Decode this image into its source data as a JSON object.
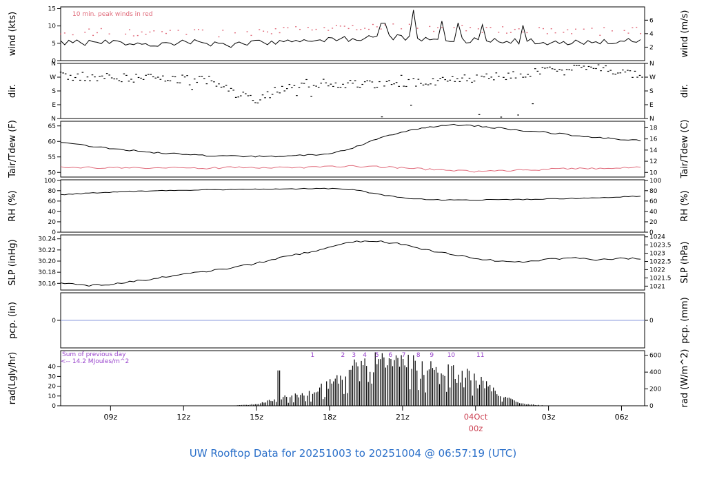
{
  "footer": {
    "title": "UW Rooftop Data for 20251003  to  20251004 @ 06:57:19  (UTC)",
    "color": "#2a6fc9"
  },
  "annotations": {
    "peak_winds_note": {
      "text": "10 min. peak winds in red",
      "color": "#e06a7a"
    },
    "rad_sum_line1": {
      "text": "Sum of previous day",
      "color": "#9944cc"
    },
    "rad_sum_line2": {
      "text": "<-- 14.2 MJoules/m^2",
      "color": "#9944cc"
    },
    "date_label": {
      "line1": "04Oct",
      "line2": "00z",
      "color": "#cc4455"
    }
  },
  "x_axis": {
    "start_hour": 6.95,
    "end_hour": 30.95,
    "ticks": [
      {
        "hour": 9,
        "label": "09z"
      },
      {
        "hour": 12,
        "label": "12z"
      },
      {
        "hour": 15,
        "label": "15z"
      },
      {
        "hour": 18,
        "label": "18z"
      },
      {
        "hour": 21,
        "label": "21z"
      },
      {
        "hour": 24,
        "label": "",
        "red": true
      },
      {
        "hour": 27,
        "label": "03z"
      },
      {
        "hour": 30,
        "label": "06z"
      }
    ]
  },
  "chart_data": {
    "type": "line",
    "title": "UW Rooftop meteogram 20251003-20251004",
    "panels": [
      {
        "name": "wind",
        "ylabel_left": "wind (kts)",
        "ylabel_right": "wind (m/s)",
        "ylim": [
          0,
          15.5
        ],
        "yticks_left": [
          {
            "v": 0,
            "label": "0"
          },
          {
            "v": 5,
            "label": "5"
          },
          {
            "v": 10,
            "label": "10"
          },
          {
            "v": 15,
            "label": "15"
          }
        ],
        "yticks_right": [
          {
            "v": 3.89,
            "label": "2"
          },
          {
            "v": 7.78,
            "label": "4"
          },
          {
            "v": 11.66,
            "label": "6"
          }
        ],
        "series": [
          {
            "name": "peak-wind-10min",
            "type": "dots",
            "color": "#e06a7a",
            "noise": 1.1,
            "gap_rate": 0.35,
            "hourly": [
              8.5,
              8.2,
              8.6,
              8.0,
              8.3,
              8.8,
              8.3,
              7.8,
              8.2,
              8.8,
              9.2,
              9.5,
              9.7,
              10.0,
              10.3,
              9.7,
              9.2,
              9.5,
              8.8,
              9.0,
              8.6,
              8.9,
              8.4,
              9.2,
              8.8
            ]
          },
          {
            "name": "mean-wind",
            "type": "line",
            "color": "#000000",
            "noise": 0.9,
            "spikes": [
              {
                "hour": 20.2,
                "value": 10.8
              },
              {
                "hour": 21.4,
                "value": 14.6
              },
              {
                "hour": 22.6,
                "value": 11.4
              },
              {
                "hour": 23.3,
                "value": 10.9
              },
              {
                "hour": 24.3,
                "value": 10.4
              },
              {
                "hour": 25.9,
                "value": 10.2
              }
            ],
            "hourly": [
              5.2,
              5.0,
              5.3,
              4.8,
              5.0,
              5.4,
              5.0,
              4.6,
              5.0,
              5.5,
              5.8,
              6.0,
              6.2,
              6.5,
              6.8,
              6.2,
              5.8,
              6.0,
              5.4,
              5.6,
              5.2,
              5.5,
              5.0,
              5.8,
              5.4
            ]
          }
        ]
      },
      {
        "name": "dir",
        "ylabel_left": "dir.",
        "ylabel_right": "dir.",
        "ylim": [
          0,
          360
        ],
        "yticks_left": [
          {
            "v": 0,
            "label": "N"
          },
          {
            "v": 90,
            "label": "E"
          },
          {
            "v": 180,
            "label": "S"
          },
          {
            "v": 270,
            "label": "W"
          },
          {
            "v": 360,
            "label": "N"
          }
        ],
        "yticks_right": [
          {
            "v": 0,
            "label": "N"
          },
          {
            "v": 90,
            "label": "E"
          },
          {
            "v": 180,
            "label": "S"
          },
          {
            "v": 270,
            "label": "W"
          },
          {
            "v": 360,
            "label": "N"
          }
        ],
        "series": [
          {
            "name": "wind-direction",
            "type": "scatter",
            "color": "#000000",
            "spread": 28,
            "outlier_rate": 0.07,
            "hourly": [
              280,
              278,
              272,
              268,
              265,
              262,
              255,
              170,
              120,
              200,
              230,
              235,
              225,
              220,
              235,
              245,
              255,
              265,
              275,
              295,
              315,
              335,
              345,
              305,
              285
            ]
          }
        ]
      },
      {
        "name": "temp",
        "ylabel_left": "Tair/Tdew (F)",
        "ylabel_right": "Tair/Tdew (C)",
        "ylim": [
          48.5,
          66.5
        ],
        "yticks_left": [
          {
            "v": 50,
            "label": "50"
          },
          {
            "v": 55,
            "label": "55"
          },
          {
            "v": 60,
            "label": "60"
          },
          {
            "v": 65,
            "label": "65"
          }
        ],
        "yticks_right": [
          {
            "v": 50,
            "label": "10"
          },
          {
            "v": 53.6,
            "label": "12"
          },
          {
            "v": 57.2,
            "label": "14"
          },
          {
            "v": 60.8,
            "label": "16"
          },
          {
            "v": 64.4,
            "label": "18"
          }
        ],
        "series": [
          {
            "name": "air-temperature",
            "type": "line",
            "color": "#000000",
            "noise": 0.25,
            "hourly": [
              59.5,
              58.6,
              57.8,
              57.0,
              56.3,
              55.8,
              55.4,
              55.2,
              55.1,
              55.3,
              55.5,
              56.0,
              58.0,
              61.0,
              63.0,
              64.5,
              65.3,
              65.0,
              64.3,
              63.5,
              62.8,
              62.0,
              61.3,
              60.7,
              60.1
            ]
          },
          {
            "name": "dew-point",
            "type": "line",
            "color": "#e06a7a",
            "noise": 0.3,
            "hourly": [
              51.8,
              51.6,
              51.5,
              51.4,
              51.3,
              51.5,
              51.4,
              51.6,
              51.5,
              51.7,
              51.6,
              51.8,
              52.0,
              51.8,
              51.5,
              51.0,
              50.6,
              50.3,
              50.5,
              50.8,
              51.0,
              51.2,
              51.3,
              51.5,
              51.6
            ]
          }
        ]
      },
      {
        "name": "rh",
        "ylabel_left": "RH (%)",
        "ylabel_right": "RH (%)",
        "ylim": [
          0,
          101
        ],
        "yticks_left": [
          {
            "v": 0,
            "label": "0"
          },
          {
            "v": 20,
            "label": "20"
          },
          {
            "v": 40,
            "label": "40"
          },
          {
            "v": 60,
            "label": "60"
          },
          {
            "v": 80,
            "label": "80"
          },
          {
            "v": 100,
            "label": "100"
          }
        ],
        "yticks_right": [
          {
            "v": 0,
            "label": "0"
          },
          {
            "v": 20,
            "label": "20"
          },
          {
            "v": 40,
            "label": "40"
          },
          {
            "v": 60,
            "label": "60"
          },
          {
            "v": 80,
            "label": "80"
          },
          {
            "v": 100,
            "label": "100"
          }
        ],
        "series": [
          {
            "name": "relative-humidity",
            "type": "line",
            "color": "#000000",
            "noise": 0.8,
            "hourly": [
              72,
              75,
              77,
              79,
              80,
              81,
              82,
              82,
              83,
              83,
              84,
              84,
              82,
              73,
              66,
              63,
              62,
              62,
              63,
              63,
              64,
              65,
              66,
              68,
              70
            ]
          }
        ]
      },
      {
        "name": "slp",
        "ylabel_left": "SLP (inHg)",
        "ylabel_right": "SLP (hPa)",
        "ylim": [
          30.148,
          30.247
        ],
        "yticks_left": [
          {
            "v": 30.16,
            "label": "30.16"
          },
          {
            "v": 30.18,
            "label": "30.18"
          },
          {
            "v": 30.2,
            "label": "30.20"
          },
          {
            "v": 30.22,
            "label": "30.22"
          },
          {
            "v": 30.24,
            "label": "30.24"
          }
        ],
        "yticks_right": [
          {
            "v": 30.155,
            "label": "1021"
          },
          {
            "v": 30.1698,
            "label": "1021.5"
          },
          {
            "v": 30.1846,
            "label": "1022"
          },
          {
            "v": 30.1993,
            "label": "1022.5"
          },
          {
            "v": 30.2141,
            "label": "1023"
          },
          {
            "v": 30.2289,
            "label": "1023.5"
          },
          {
            "v": 30.2436,
            "label": "1024"
          }
        ],
        "series": [
          {
            "name": "sea-level-pressure",
            "type": "line",
            "color": "#000000",
            "noise": 0.0015,
            "hourly": [
              30.161,
              30.156,
              30.158,
              30.164,
              30.17,
              30.176,
              30.182,
              30.188,
              30.196,
              30.206,
              30.215,
              30.224,
              30.235,
              30.236,
              30.23,
              30.22,
              30.212,
              30.205,
              30.2,
              30.198,
              30.203,
              30.206,
              30.202,
              30.205,
              30.204
            ]
          }
        ]
      },
      {
        "name": "pcp",
        "ylabel_left": "pcp. (in)",
        "ylabel_right": "pcp. (mm)",
        "ylim": [
          -1,
          1
        ],
        "yticks_left": [
          {
            "v": 0,
            "label": "0"
          }
        ],
        "yticks_right": [
          {
            "v": 0,
            "label": "0"
          }
        ],
        "series": [
          {
            "name": "precipitation",
            "type": "flat",
            "color": "#8899dd",
            "value": 0
          }
        ]
      },
      {
        "name": "rad",
        "ylabel_left": "rad(Lgly/hr)",
        "ylabel_right": "rad (W/m^2)",
        "ylim": [
          0,
          655
        ],
        "yticks_left": [
          {
            "v": 0,
            "label": "0"
          },
          {
            "v": 116.3,
            "label": "10"
          },
          {
            "v": 232.6,
            "label": "20"
          },
          {
            "v": 348.9,
            "label": "30"
          },
          {
            "v": 465.2,
            "label": "40"
          }
        ],
        "yticks_right": [
          {
            "v": 0,
            "label": "0"
          },
          {
            "v": 200,
            "label": "200"
          },
          {
            "v": 400,
            "label": "400"
          },
          {
            "v": 600,
            "label": "600"
          }
        ],
        "hour_marks": {
          "color": "#9944cc",
          "items": [
            {
              "hour": 17.3,
              "label": "1"
            },
            {
              "hour": 18.55,
              "label": "2"
            },
            {
              "hour": 19.0,
              "label": "3"
            },
            {
              "hour": 19.45,
              "label": "4"
            },
            {
              "hour": 19.95,
              "label": "5"
            },
            {
              "hour": 20.5,
              "label": "6"
            },
            {
              "hour": 21.05,
              "label": "7"
            },
            {
              "hour": 21.65,
              "label": "8"
            },
            {
              "hour": 22.2,
              "label": "9"
            },
            {
              "hour": 23.0,
              "label": "10"
            },
            {
              "hour": 24.2,
              "label": "11"
            }
          ]
        },
        "series": [
          {
            "name": "solar-radiation",
            "type": "vbars",
            "color": "#000000",
            "spikes": [
              {
                "hour": 15.9,
                "value": 420
              }
            ],
            "hourly": [
              0,
              0,
              0,
              0,
              0,
              0,
              0,
              3,
              25,
              120,
              160,
              300,
              580,
              620,
              590,
              560,
              520,
              420,
              140,
              25,
              0,
              0,
              0,
              0,
              0
            ]
          }
        ]
      }
    ]
  }
}
